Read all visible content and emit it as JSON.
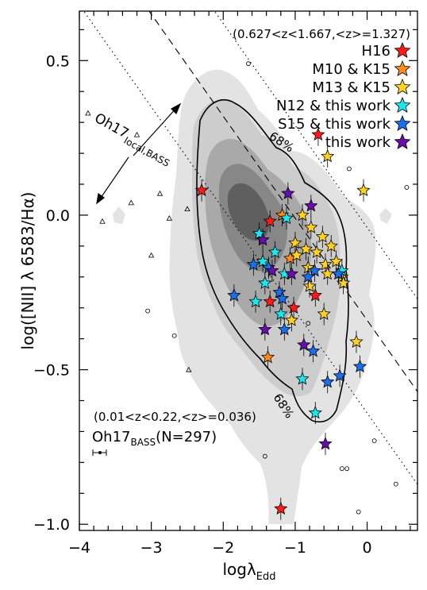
{
  "chart_data": {
    "type": "scatter",
    "xlabel": "logλ",
    "xlabel_sub": "Edd",
    "ylabel": "log([NII] λ 6583/Hα)",
    "xlim": [
      -4.0,
      0.7
    ],
    "ylim": [
      -1.02,
      0.66
    ],
    "xticks": [
      -4,
      -3,
      -2,
      -1,
      0
    ],
    "xtick_labels": [
      "−4",
      "−3",
      "−2",
      "−1",
      "0"
    ],
    "yticks": [
      0.5,
      0.0,
      -0.5,
      -1.0
    ],
    "ytick_labels": [
      "0.5",
      "0.0",
      "−0.5",
      "−1.0"
    ],
    "highz_range_label": "(0.627<z<1.667,<z>=1.327)",
    "lowz_range_label": "(0.01<z<0.22,<z>=0.036)",
    "sample_label": "Oh17",
    "sample_label_sub": "BASS",
    "sample_label_tail": "(N=297)",
    "relation_label": "Oh17",
    "relation_label_sub": "local,BASS",
    "contour_labels": [
      "68%",
      "68%"
    ],
    "legend": [
      {
        "name": "H16",
        "color": "#ff1a1a"
      },
      {
        "name": "M10 & K15",
        "color": "#ff8c1a"
      },
      {
        "name": "M13 & K15",
        "color": "#ffd21f"
      },
      {
        "name": "N12 & this work",
        "color": "#1ae6ee"
      },
      {
        "name": "S15 & this work",
        "color": "#1a6fee"
      },
      {
        "name": "this work",
        "color": "#6a0dad"
      }
    ],
    "relation": {
      "slope": -0.33,
      "intercept": -0.34,
      "offsets": [
        0.3,
        -0.3
      ]
    },
    "series": [
      {
        "name": "H16",
        "color": "#ff1a1a",
        "points": [
          [
            -2.3,
            0.08
          ],
          [
            -0.68,
            0.26
          ],
          [
            -1.35,
            -0.28
          ],
          [
            -1.02,
            -0.3
          ],
          [
            -0.72,
            -0.26
          ],
          [
            -1.2,
            -0.95
          ],
          [
            -1.35,
            -0.02
          ]
        ]
      },
      {
        "name": "M10 & K15",
        "color": "#ff8c1a",
        "points": [
          [
            -1.38,
            -0.46
          ],
          [
            -1.07,
            -0.14
          ],
          [
            -1.18,
            0.0
          ]
        ]
      },
      {
        "name": "M13 & K15",
        "color": "#ffd21f",
        "points": [
          [
            -0.05,
            0.08
          ],
          [
            -0.55,
            0.19
          ],
          [
            -0.9,
            0.0
          ],
          [
            -0.78,
            -0.04
          ],
          [
            -0.62,
            -0.07
          ],
          [
            -1.0,
            -0.09
          ],
          [
            -0.5,
            -0.1
          ],
          [
            -0.85,
            -0.11
          ],
          [
            -0.7,
            -0.12
          ],
          [
            -0.98,
            -0.13
          ],
          [
            -0.43,
            -0.15
          ],
          [
            -0.58,
            -0.16
          ],
          [
            -0.82,
            -0.17
          ],
          [
            -0.55,
            -0.19
          ],
          [
            -0.35,
            -0.2
          ],
          [
            -0.33,
            -0.22
          ],
          [
            -1.05,
            -0.34
          ],
          [
            -0.6,
            -0.32
          ],
          [
            -0.15,
            -0.41
          ],
          [
            -0.8,
            -0.23
          ]
        ]
      },
      {
        "name": "N12 & this work",
        "color": "#1ae6ee",
        "points": [
          [
            -1.12,
            -0.01
          ],
          [
            -1.5,
            -0.06
          ],
          [
            -1.28,
            -0.12
          ],
          [
            -1.45,
            -0.15
          ],
          [
            -1.15,
            -0.19
          ],
          [
            -1.55,
            -0.28
          ],
          [
            -1.2,
            -0.32
          ],
          [
            -0.9,
            -0.53
          ],
          [
            -0.72,
            -0.64
          ],
          [
            -0.35,
            -0.18
          ],
          [
            -1.42,
            -0.22
          ]
        ]
      },
      {
        "name": "S15 & this work",
        "color": "#1a6fee",
        "points": [
          [
            -1.58,
            -0.16
          ],
          [
            -1.37,
            -0.17
          ],
          [
            -1.22,
            -0.25
          ],
          [
            -1.85,
            -0.26
          ],
          [
            -1.18,
            -0.27
          ],
          [
            -1.15,
            -0.37
          ],
          [
            -0.73,
            -0.18
          ],
          [
            -0.82,
            -0.2
          ],
          [
            -0.4,
            -0.19
          ],
          [
            -0.75,
            -0.44
          ],
          [
            -0.55,
            -0.54
          ],
          [
            -0.38,
            -0.52
          ],
          [
            -0.1,
            -0.49
          ]
        ]
      },
      {
        "name": "this work",
        "color": "#6a0dad",
        "points": [
          [
            -1.1,
            0.07
          ],
          [
            -0.78,
            0.03
          ],
          [
            -1.45,
            -0.08
          ],
          [
            -1.32,
            -0.18
          ],
          [
            -1.05,
            -0.19
          ],
          [
            -1.42,
            -0.37
          ],
          [
            -0.88,
            -0.42
          ],
          [
            -0.58,
            -0.74
          ]
        ]
      }
    ]
  }
}
